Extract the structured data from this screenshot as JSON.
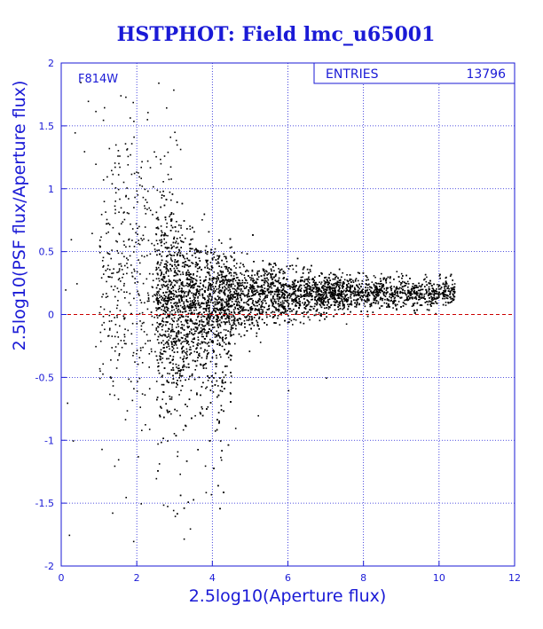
{
  "chart_data": {
    "type": "scatter",
    "title": "HSTPHOT: Field lmc_u65001",
    "xlabel": "2.5log10(Aperture flux)",
    "ylabel": "2.5log10(PSF flux/Aperture flux)",
    "xlim": [
      0,
      12
    ],
    "ylim": [
      -2,
      2
    ],
    "xticks": [
      "0",
      "2",
      "4",
      "6",
      "8",
      "10",
      "12"
    ],
    "yticks": [
      "-2",
      "-1.5",
      "-1",
      "-0.5",
      "0",
      "0.5",
      "1",
      "1.5",
      "2"
    ],
    "grid": true,
    "reference_line": {
      "y": 0,
      "style": "dashed",
      "color": "#cc0000"
    },
    "annotation": "F814W",
    "stats_box": {
      "label": "ENTRIES",
      "value": "13796"
    },
    "colors": {
      "text": "#1a1ad6",
      "grid": "#1a1ad6",
      "points": "#000000",
      "zero_line": "#cc0000"
    },
    "series": [
      {
        "values_note_free": true,
        "points": [
          [
            0.5,
            1.85
          ],
          [
            0.7,
            1.7
          ],
          [
            0.9,
            1.62
          ],
          [
            1.1,
            1.55
          ],
          [
            0.35,
            1.45
          ],
          [
            0.6,
            1.3
          ],
          [
            0.9,
            1.2
          ],
          [
            1.2,
            1.1
          ],
          [
            1.5,
            1.0
          ],
          [
            1.7,
            0.95
          ],
          [
            2.0,
            0.9
          ],
          [
            2.2,
            0.85
          ],
          [
            2.4,
            0.8
          ],
          [
            2.6,
            0.98
          ],
          [
            0.8,
            0.65
          ],
          [
            1.0,
            0.55
          ],
          [
            1.3,
            0.45
          ],
          [
            1.6,
            0.3
          ],
          [
            0.4,
            0.25
          ],
          [
            0.9,
            -0.25
          ],
          [
            1.3,
            -0.5
          ],
          [
            1.5,
            -1.15
          ],
          [
            1.7,
            -1.45
          ],
          [
            1.9,
            -1.8
          ],
          [
            2.1,
            -1.5
          ],
          [
            2.5,
            -1.3
          ],
          [
            2.8,
            -1.0
          ],
          [
            3.0,
            -1.6
          ],
          [
            3.4,
            -1.7
          ],
          [
            3.8,
            -1.2
          ],
          [
            4.2,
            -1.0
          ],
          [
            4.6,
            -0.9
          ],
          [
            5.2,
            -0.8
          ],
          [
            6.0,
            -0.6
          ],
          [
            7.0,
            -0.5
          ],
          [
            0.2,
            -1.75
          ],
          [
            0.3,
            -1.0
          ],
          [
            0.15,
            -0.7
          ],
          [
            0.1,
            0.2
          ],
          [
            0.25,
            0.6
          ]
        ]
      }
    ]
  }
}
